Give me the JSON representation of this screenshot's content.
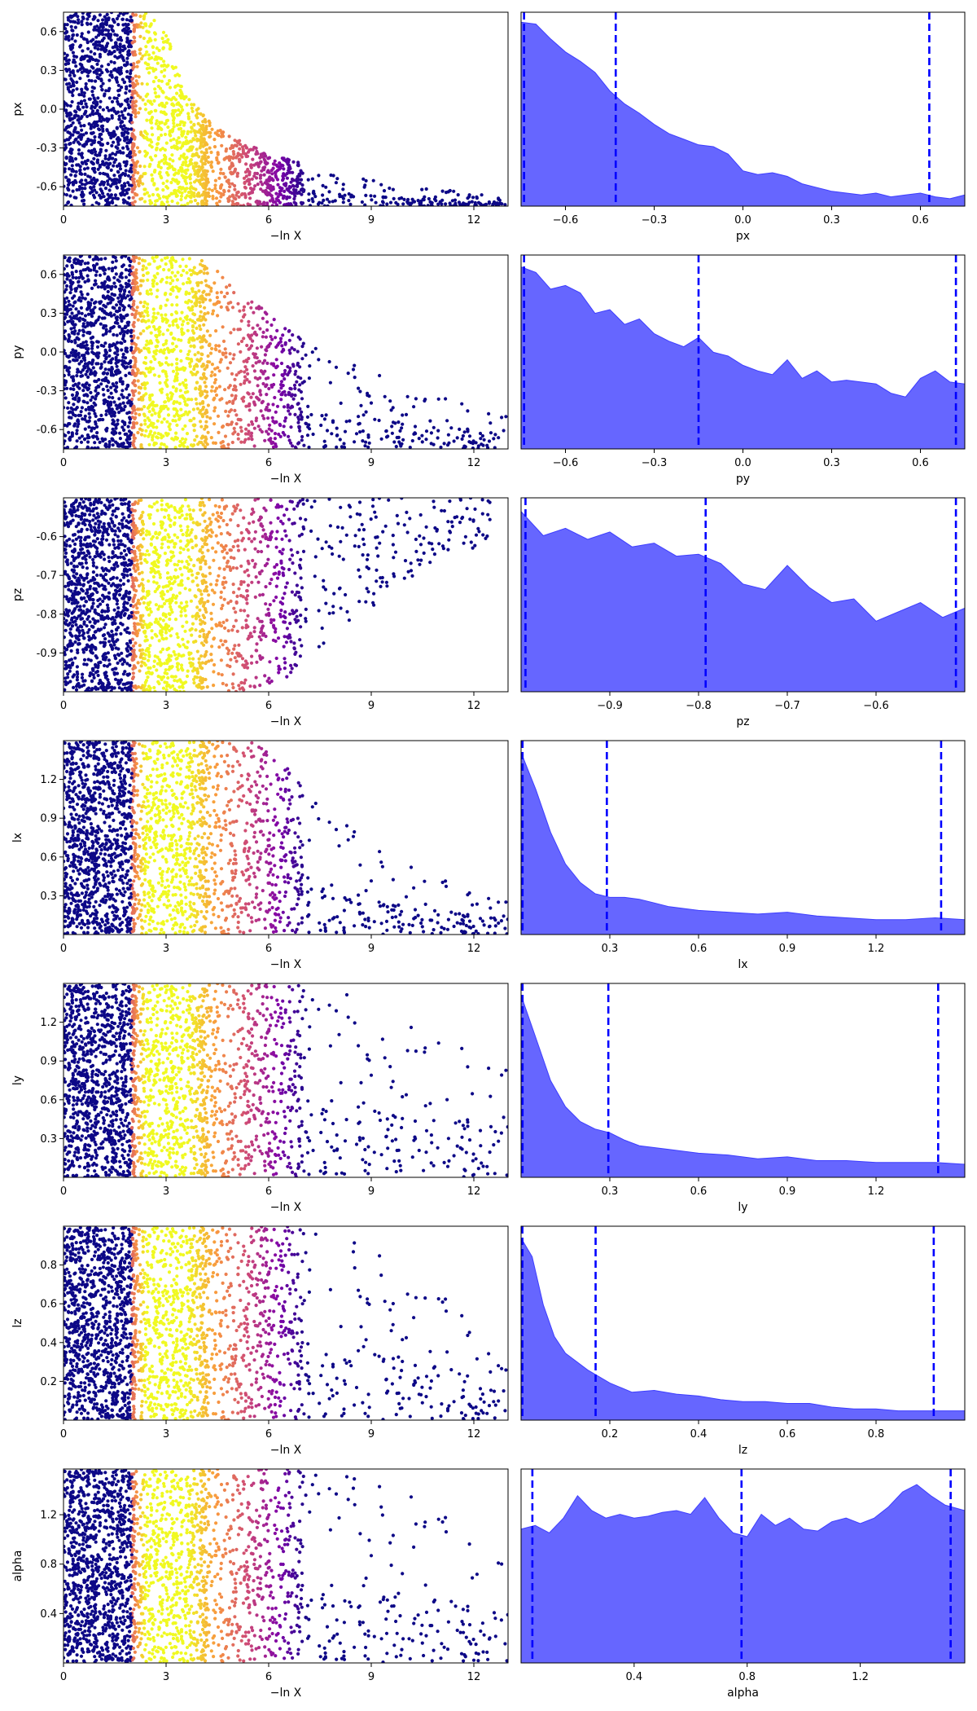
{
  "chart_data": [
    {
      "panel": "px-trace",
      "type": "scatter",
      "xlabel": "−ln X",
      "ylabel": "px",
      "xlim": [
        0,
        13
      ],
      "ylim": [
        -0.75,
        0.75
      ],
      "xticks": [
        "0",
        "3",
        "6",
        "9",
        "12"
      ],
      "yticks": [
        "-0.6",
        "-0.3",
        "0.0",
        "0.3",
        "0.6"
      ],
      "colormap": "plasma",
      "trend": {
        "center_x": [
          0.0,
          2.4,
          3.0,
          3.6,
          4.5,
          6.0,
          7.5,
          9.0,
          11.0,
          13.0
        ],
        "ceiling_y": [
          0.75,
          0.75,
          0.6,
          0.1,
          -0.15,
          -0.35,
          -0.45,
          -0.55,
          -0.62,
          -0.68
        ]
      },
      "max_x": 13
    },
    {
      "panel": "px-posterior",
      "type": "area",
      "xlabel": "px",
      "xlim": [
        -0.75,
        0.75
      ],
      "xticks": [
        "-0.6",
        "-0.3",
        "0.0",
        "0.3",
        "0.6"
      ],
      "x": [
        -0.75,
        -0.7,
        -0.65,
        -0.6,
        -0.55,
        -0.5,
        -0.45,
        -0.4,
        -0.35,
        -0.3,
        -0.25,
        -0.2,
        -0.15,
        -0.1,
        -0.05,
        0.0,
        0.05,
        0.1,
        0.15,
        0.2,
        0.25,
        0.3,
        0.35,
        0.4,
        0.45,
        0.5,
        0.55,
        0.6,
        0.65,
        0.7,
        0.75
      ],
      "density": [
        0.99,
        0.98,
        0.9,
        0.83,
        0.78,
        0.72,
        0.62,
        0.55,
        0.5,
        0.44,
        0.39,
        0.36,
        0.33,
        0.32,
        0.28,
        0.19,
        0.17,
        0.18,
        0.16,
        0.12,
        0.1,
        0.08,
        0.07,
        0.06,
        0.07,
        0.05,
        0.06,
        0.07,
        0.05,
        0.04,
        0.06
      ],
      "quantile_lines": [
        -0.74,
        -0.43,
        0.63
      ],
      "color": "#6666ff",
      "line_color": "#0000ff"
    },
    {
      "panel": "py-trace",
      "type": "scatter",
      "xlabel": "−ln X",
      "ylabel": "py",
      "xlim": [
        0,
        13
      ],
      "ylim": [
        -0.75,
        0.75
      ],
      "xticks": [
        "0",
        "3",
        "6",
        "9",
        "12"
      ],
      "yticks": [
        "-0.6",
        "-0.3",
        "0.0",
        "0.3",
        "0.6"
      ],
      "colormap": "plasma",
      "trend": {
        "center_x": [
          0.0,
          3.5,
          4.2,
          5.0,
          6.0,
          7.0,
          8.0,
          9.0,
          10.5,
          13.0
        ],
        "ceiling_y": [
          0.75,
          0.75,
          0.7,
          0.5,
          0.3,
          0.1,
          -0.05,
          -0.15,
          -0.3,
          -0.45
        ]
      },
      "max_x": 13
    },
    {
      "panel": "py-posterior",
      "type": "area",
      "xlabel": "py",
      "xlim": [
        -0.75,
        0.75
      ],
      "xticks": [
        "-0.6",
        "-0.3",
        "0.0",
        "0.3",
        "0.6"
      ],
      "x": [
        -0.75,
        -0.7,
        -0.65,
        -0.6,
        -0.55,
        -0.5,
        -0.45,
        -0.4,
        -0.35,
        -0.3,
        -0.25,
        -0.2,
        -0.15,
        -0.1,
        -0.05,
        0.0,
        0.05,
        0.1,
        0.15,
        0.2,
        0.25,
        0.3,
        0.35,
        0.4,
        0.45,
        0.5,
        0.55,
        0.6,
        0.65,
        0.7,
        0.75
      ],
      "density": [
        0.98,
        0.95,
        0.86,
        0.88,
        0.84,
        0.73,
        0.75,
        0.67,
        0.7,
        0.62,
        0.58,
        0.55,
        0.6,
        0.52,
        0.5,
        0.45,
        0.42,
        0.4,
        0.48,
        0.38,
        0.42,
        0.36,
        0.37,
        0.36,
        0.35,
        0.3,
        0.28,
        0.38,
        0.42,
        0.36,
        0.35
      ],
      "quantile_lines": [
        -0.74,
        -0.15,
        0.72
      ],
      "color": "#6666ff",
      "line_color": "#0000ff"
    },
    {
      "panel": "pz-trace",
      "type": "scatter",
      "xlabel": "−ln X",
      "ylabel": "pz",
      "xlim": [
        0,
        13
      ],
      "ylim": [
        -1.0,
        -0.5
      ],
      "xticks": [
        "0",
        "3",
        "6",
        "9",
        "12"
      ],
      "yticks": [
        "-0.9",
        "-0.8",
        "-0.7",
        "-0.6"
      ],
      "colormap": "plasma",
      "trend": {
        "center_x": [
          0.0,
          6.0,
          7.0,
          8.0,
          9.0,
          10.0,
          11.0,
          13.0
        ],
        "floor_y": [
          -1.0,
          -1.0,
          -0.93,
          -0.86,
          -0.8,
          -0.72,
          -0.66,
          -0.6
        ]
      },
      "max_x": 12.5
    },
    {
      "panel": "pz-posterior",
      "type": "area",
      "xlabel": "pz",
      "xlim": [
        -1.0,
        -0.5
      ],
      "xticks": [
        "-0.9",
        "-0.8",
        "-0.7",
        "-0.6"
      ],
      "x": [
        -1.0,
        -0.975,
        -0.95,
        -0.925,
        -0.9,
        -0.875,
        -0.85,
        -0.825,
        -0.8,
        -0.775,
        -0.75,
        -0.725,
        -0.7,
        -0.675,
        -0.65,
        -0.625,
        -0.6,
        -0.575,
        -0.55,
        -0.525,
        -0.5
      ],
      "density": [
        0.97,
        0.84,
        0.88,
        0.82,
        0.86,
        0.78,
        0.8,
        0.73,
        0.74,
        0.69,
        0.58,
        0.55,
        0.68,
        0.56,
        0.48,
        0.5,
        0.38,
        0.43,
        0.48,
        0.4,
        0.45
      ],
      "quantile_lines": [
        -0.995,
        -0.792,
        -0.51
      ],
      "color": "#6666ff",
      "line_color": "#0000ff"
    },
    {
      "panel": "lx-trace",
      "type": "scatter",
      "xlabel": "−ln X",
      "ylabel": "lx",
      "xlim": [
        0,
        13
      ],
      "ylim": [
        0.0,
        1.5
      ],
      "xticks": [
        "0",
        "3",
        "6",
        "9",
        "12"
      ],
      "yticks": [
        "0.3",
        "0.6",
        "0.9",
        "1.2"
      ],
      "colormap": "plasma",
      "trend": {
        "center_x": [
          0.0,
          5.5,
          6.5,
          7.5,
          8.5,
          9.5,
          11.0,
          13.0
        ],
        "ceiling_y": [
          1.5,
          1.5,
          1.3,
          1.0,
          0.8,
          0.6,
          0.45,
          0.3
        ]
      },
      "max_x": 13
    },
    {
      "panel": "lx-posterior",
      "type": "area",
      "xlabel": "lx",
      "xlim": [
        0.0,
        1.5
      ],
      "xticks": [
        "0.3",
        "0.6",
        "0.9",
        "1.2"
      ],
      "x": [
        0.0,
        0.05,
        0.1,
        0.15,
        0.2,
        0.25,
        0.3,
        0.35,
        0.4,
        0.45,
        0.5,
        0.6,
        0.7,
        0.8,
        0.9,
        1.0,
        1.1,
        1.2,
        1.3,
        1.4,
        1.5
      ],
      "density": [
        0.98,
        0.78,
        0.55,
        0.38,
        0.28,
        0.22,
        0.2,
        0.2,
        0.19,
        0.17,
        0.15,
        0.13,
        0.12,
        0.11,
        0.12,
        0.1,
        0.09,
        0.08,
        0.08,
        0.09,
        0.08
      ],
      "quantile_lines": [
        0.005,
        0.29,
        1.42
      ],
      "color": "#6666ff",
      "line_color": "#0000ff"
    },
    {
      "panel": "ly-trace",
      "type": "scatter",
      "xlabel": "−ln X",
      "ylabel": "ly",
      "xlim": [
        0,
        13
      ],
      "ylim": [
        0.0,
        1.5
      ],
      "xticks": [
        "0",
        "3",
        "6",
        "9",
        "12"
      ],
      "yticks": [
        "0.3",
        "0.6",
        "0.9",
        "1.2"
      ],
      "colormap": "plasma",
      "trend": {
        "center_x": [
          0.0,
          7.0,
          8.5,
          10.0,
          11.5,
          13.0
        ],
        "ceiling_y": [
          1.5,
          1.5,
          1.4,
          1.2,
          1.1,
          1.0
        ]
      },
      "max_x": 13
    },
    {
      "panel": "ly-posterior",
      "type": "area",
      "xlabel": "ly",
      "xlim": [
        0.0,
        1.5
      ],
      "xticks": [
        "0.3",
        "0.6",
        "0.9",
        "1.2"
      ],
      "x": [
        0.0,
        0.05,
        0.1,
        0.15,
        0.2,
        0.25,
        0.3,
        0.35,
        0.4,
        0.45,
        0.5,
        0.6,
        0.7,
        0.8,
        0.9,
        1.0,
        1.1,
        1.2,
        1.3,
        1.4,
        1.5
      ],
      "density": [
        0.98,
        0.75,
        0.52,
        0.38,
        0.3,
        0.26,
        0.24,
        0.2,
        0.17,
        0.16,
        0.15,
        0.13,
        0.12,
        0.1,
        0.11,
        0.09,
        0.09,
        0.08,
        0.08,
        0.08,
        0.07
      ],
      "quantile_lines": [
        0.005,
        0.295,
        1.41
      ],
      "color": "#6666ff",
      "line_color": "#0000ff"
    },
    {
      "panel": "lz-trace",
      "type": "scatter",
      "xlabel": "−ln X",
      "ylabel": "lz",
      "xlim": [
        0,
        13
      ],
      "ylim": [
        0.0,
        1.0
      ],
      "xticks": [
        "0",
        "3",
        "6",
        "9",
        "12"
      ],
      "yticks": [
        "0.2",
        "0.4",
        "0.6",
        "0.8"
      ],
      "colormap": "plasma",
      "trend": {
        "center_x": [
          0.0,
          7.0,
          8.5,
          10.0,
          11.5,
          13.0
        ],
        "ceiling_y": [
          1.0,
          1.0,
          0.92,
          0.8,
          0.62,
          0.3
        ]
      },
      "max_x": 13
    },
    {
      "panel": "lz-posterior",
      "type": "area",
      "xlabel": "lz",
      "xlim": [
        0.0,
        1.0
      ],
      "xticks": [
        "0.2",
        "0.4",
        "0.6",
        "0.8"
      ],
      "x": [
        0.0,
        0.025,
        0.05,
        0.075,
        0.1,
        0.15,
        0.2,
        0.25,
        0.3,
        0.35,
        0.4,
        0.45,
        0.5,
        0.55,
        0.6,
        0.65,
        0.7,
        0.75,
        0.8,
        0.85,
        0.9,
        0.95,
        1.0
      ],
      "density": [
        0.98,
        0.88,
        0.62,
        0.45,
        0.36,
        0.27,
        0.2,
        0.15,
        0.16,
        0.14,
        0.13,
        0.11,
        0.1,
        0.1,
        0.09,
        0.09,
        0.07,
        0.06,
        0.06,
        0.05,
        0.05,
        0.05,
        0.05
      ],
      "quantile_lines": [
        0.003,
        0.168,
        0.93
      ],
      "color": "#6666ff",
      "line_color": "#0000ff"
    },
    {
      "panel": "alpha-trace",
      "type": "scatter",
      "xlabel": "−ln X",
      "ylabel": "alpha",
      "xlim": [
        0,
        13
      ],
      "ylim": [
        0.0,
        1.57
      ],
      "xticks": [
        "0",
        "3",
        "6",
        "9",
        "12"
      ],
      "yticks": [
        "0.4",
        "0.8",
        "1.2"
      ],
      "colormap": "plasma",
      "trend": {
        "center_x": [
          0.0,
          7.0,
          8.5,
          10.0,
          11.5,
          13.0
        ],
        "ceiling_y": [
          1.57,
          1.57,
          1.5,
          1.4,
          1.2,
          1.0
        ]
      },
      "max_x": 13
    },
    {
      "panel": "alpha-posterior",
      "type": "area",
      "xlabel": "alpha",
      "xlim": [
        0.0,
        1.57
      ],
      "xticks": [
        "0.4",
        "0.8",
        "1.2"
      ],
      "x": [
        0.0,
        0.05,
        0.1,
        0.15,
        0.2,
        0.25,
        0.3,
        0.35,
        0.4,
        0.45,
        0.5,
        0.55,
        0.6,
        0.65,
        0.7,
        0.75,
        0.8,
        0.85,
        0.9,
        0.95,
        1.0,
        1.05,
        1.1,
        1.15,
        1.2,
        1.25,
        1.3,
        1.35,
        1.4,
        1.45,
        1.5,
        1.57
      ],
      "density": [
        0.72,
        0.74,
        0.7,
        0.78,
        0.9,
        0.82,
        0.78,
        0.8,
        0.78,
        0.79,
        0.81,
        0.82,
        0.8,
        0.89,
        0.78,
        0.7,
        0.68,
        0.8,
        0.74,
        0.78,
        0.72,
        0.71,
        0.76,
        0.78,
        0.75,
        0.78,
        0.84,
        0.92,
        0.96,
        0.9,
        0.85,
        0.82
      ],
      "quantile_lines": [
        0.04,
        0.78,
        1.52
      ],
      "color": "#6666ff",
      "line_color": "#0000ff"
    }
  ]
}
